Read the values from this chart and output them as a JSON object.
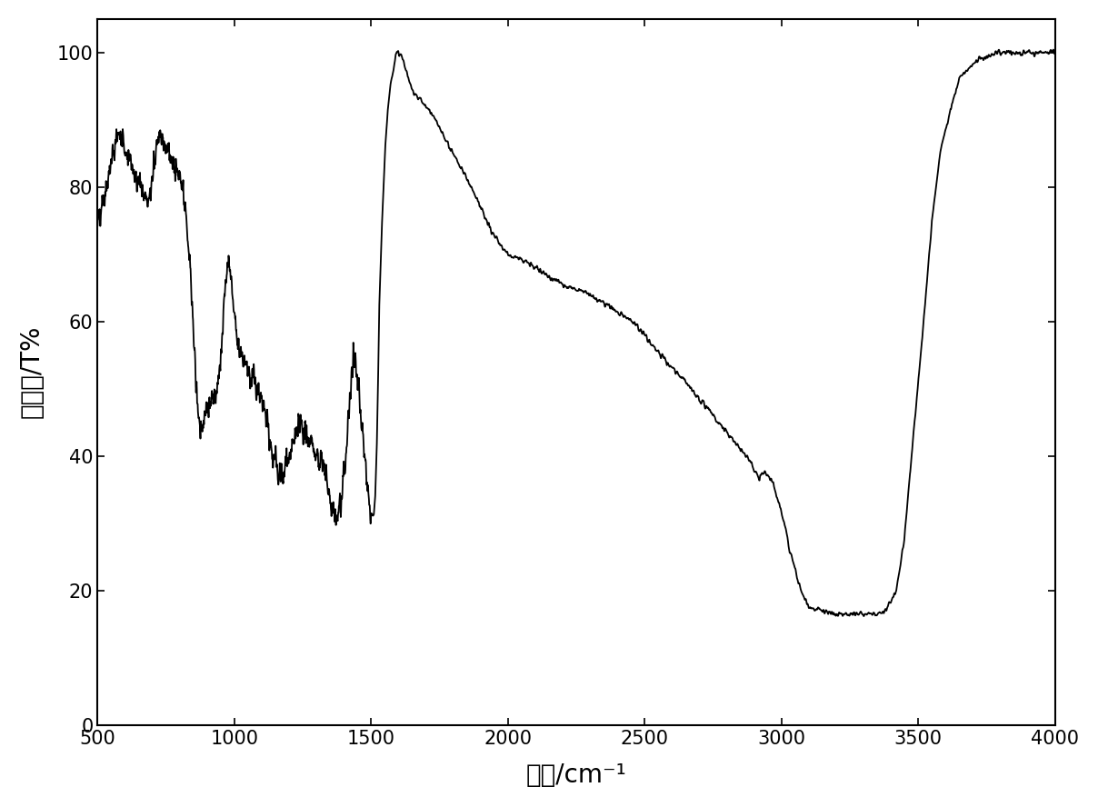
{
  "xlabel": "波数/cm⁻¹",
  "ylabel": "透过率/T%",
  "xlim": [
    4000,
    500
  ],
  "ylim": [
    0,
    105
  ],
  "yticks": [
    0,
    20,
    40,
    60,
    80,
    100
  ],
  "xticks": [
    4000,
    3500,
    3000,
    2500,
    2000,
    1500,
    1000,
    500
  ],
  "line_color": "#000000",
  "line_width": 1.3,
  "background_color": "#ffffff",
  "figsize": [
    12.08,
    8.88
  ],
  "dpi": 100
}
